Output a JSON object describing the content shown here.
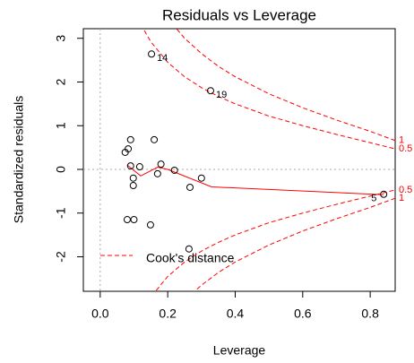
{
  "chart_data": {
    "type": "scatter",
    "title": "Residuals vs Leverage",
    "x_label": "Leverage",
    "y_label": "Standardized residuals",
    "xlim": [
      -0.05,
      0.874
    ],
    "ylim": [
      -2.79,
      3.22
    ],
    "xticks": [
      {
        "value": 0,
        "label": "0.0"
      },
      0.2,
      0.4,
      0.6,
      0.8
    ],
    "yticks": [
      -2,
      -1,
      0,
      1,
      2,
      3
    ],
    "hline": 0,
    "vline": 0,
    "points": {
      "x": [
        0.152,
        0.327,
        0.16,
        0.09,
        0.074,
        0.083,
        0.09,
        0.117,
        0.18,
        0.22,
        0.3,
        0.098,
        0.098,
        0.17,
        0.266,
        0.08,
        0.1,
        0.149,
        0.263,
        0.84
      ],
      "values": [
        2.64,
        1.8,
        0.68,
        0.68,
        0.39,
        0.47,
        0.08,
        0.06,
        0.12,
        -0.02,
        -0.2,
        -0.2,
        -0.37,
        -0.1,
        -0.41,
        -1.15,
        -1.15,
        -1.27,
        -1.82,
        -0.57
      ],
      "labels": [
        "14",
        "19",
        null,
        null,
        null,
        null,
        null,
        null,
        null,
        null,
        null,
        null,
        null,
        null,
        null,
        null,
        null,
        null,
        null,
        "5"
      ]
    },
    "smooth": {
      "color": "#ff0000",
      "x": [
        0.08,
        0.12,
        0.17,
        0.2,
        0.33,
        0.84
      ],
      "values": [
        0.1,
        -0.15,
        0.05,
        0,
        -0.4,
        -0.58
      ]
    },
    "cook_color": "#ff0000",
    "cook_contours": [
      {
        "label": "1",
        "x": [
          0.2,
          0.25,
          0.3,
          0.35,
          0.4,
          0.5,
          0.6,
          0.7,
          0.8,
          0.874
        ],
        "values": [
          3.46,
          3,
          2.65,
          2.36,
          2.12,
          1.73,
          1.41,
          1.13,
          0.87,
          0.66
        ]
      },
      {
        "label": "0.5",
        "x": [
          0.12,
          0.15,
          0.2,
          0.25,
          0.3,
          0.35,
          0.4,
          0.5,
          0.6,
          0.7,
          0.8,
          0.874
        ],
        "values": [
          3.32,
          2.92,
          2.45,
          2.12,
          1.87,
          1.67,
          1.5,
          1.22,
          1.0,
          0.8,
          0.61,
          0.47
        ]
      },
      {
        "label": "0.5",
        "x": [
          0.12,
          0.15,
          0.2,
          0.25,
          0.3,
          0.35,
          0.4,
          0.5,
          0.6,
          0.7,
          0.8,
          0.874
        ],
        "values": [
          -3.32,
          -2.92,
          -2.45,
          -2.12,
          -1.87,
          -1.67,
          -1.5,
          -1.22,
          -1.0,
          -0.8,
          -0.61,
          -0.47
        ]
      },
      {
        "label": "1",
        "x": [
          0.2,
          0.25,
          0.3,
          0.35,
          0.4,
          0.5,
          0.6,
          0.7,
          0.8,
          0.874
        ],
        "values": [
          -3.46,
          -3,
          -2.65,
          -2.36,
          -2.12,
          -1.73,
          -1.41,
          -1.13,
          -0.87,
          -0.66
        ]
      }
    ],
    "legend": "Cook's distance"
  }
}
